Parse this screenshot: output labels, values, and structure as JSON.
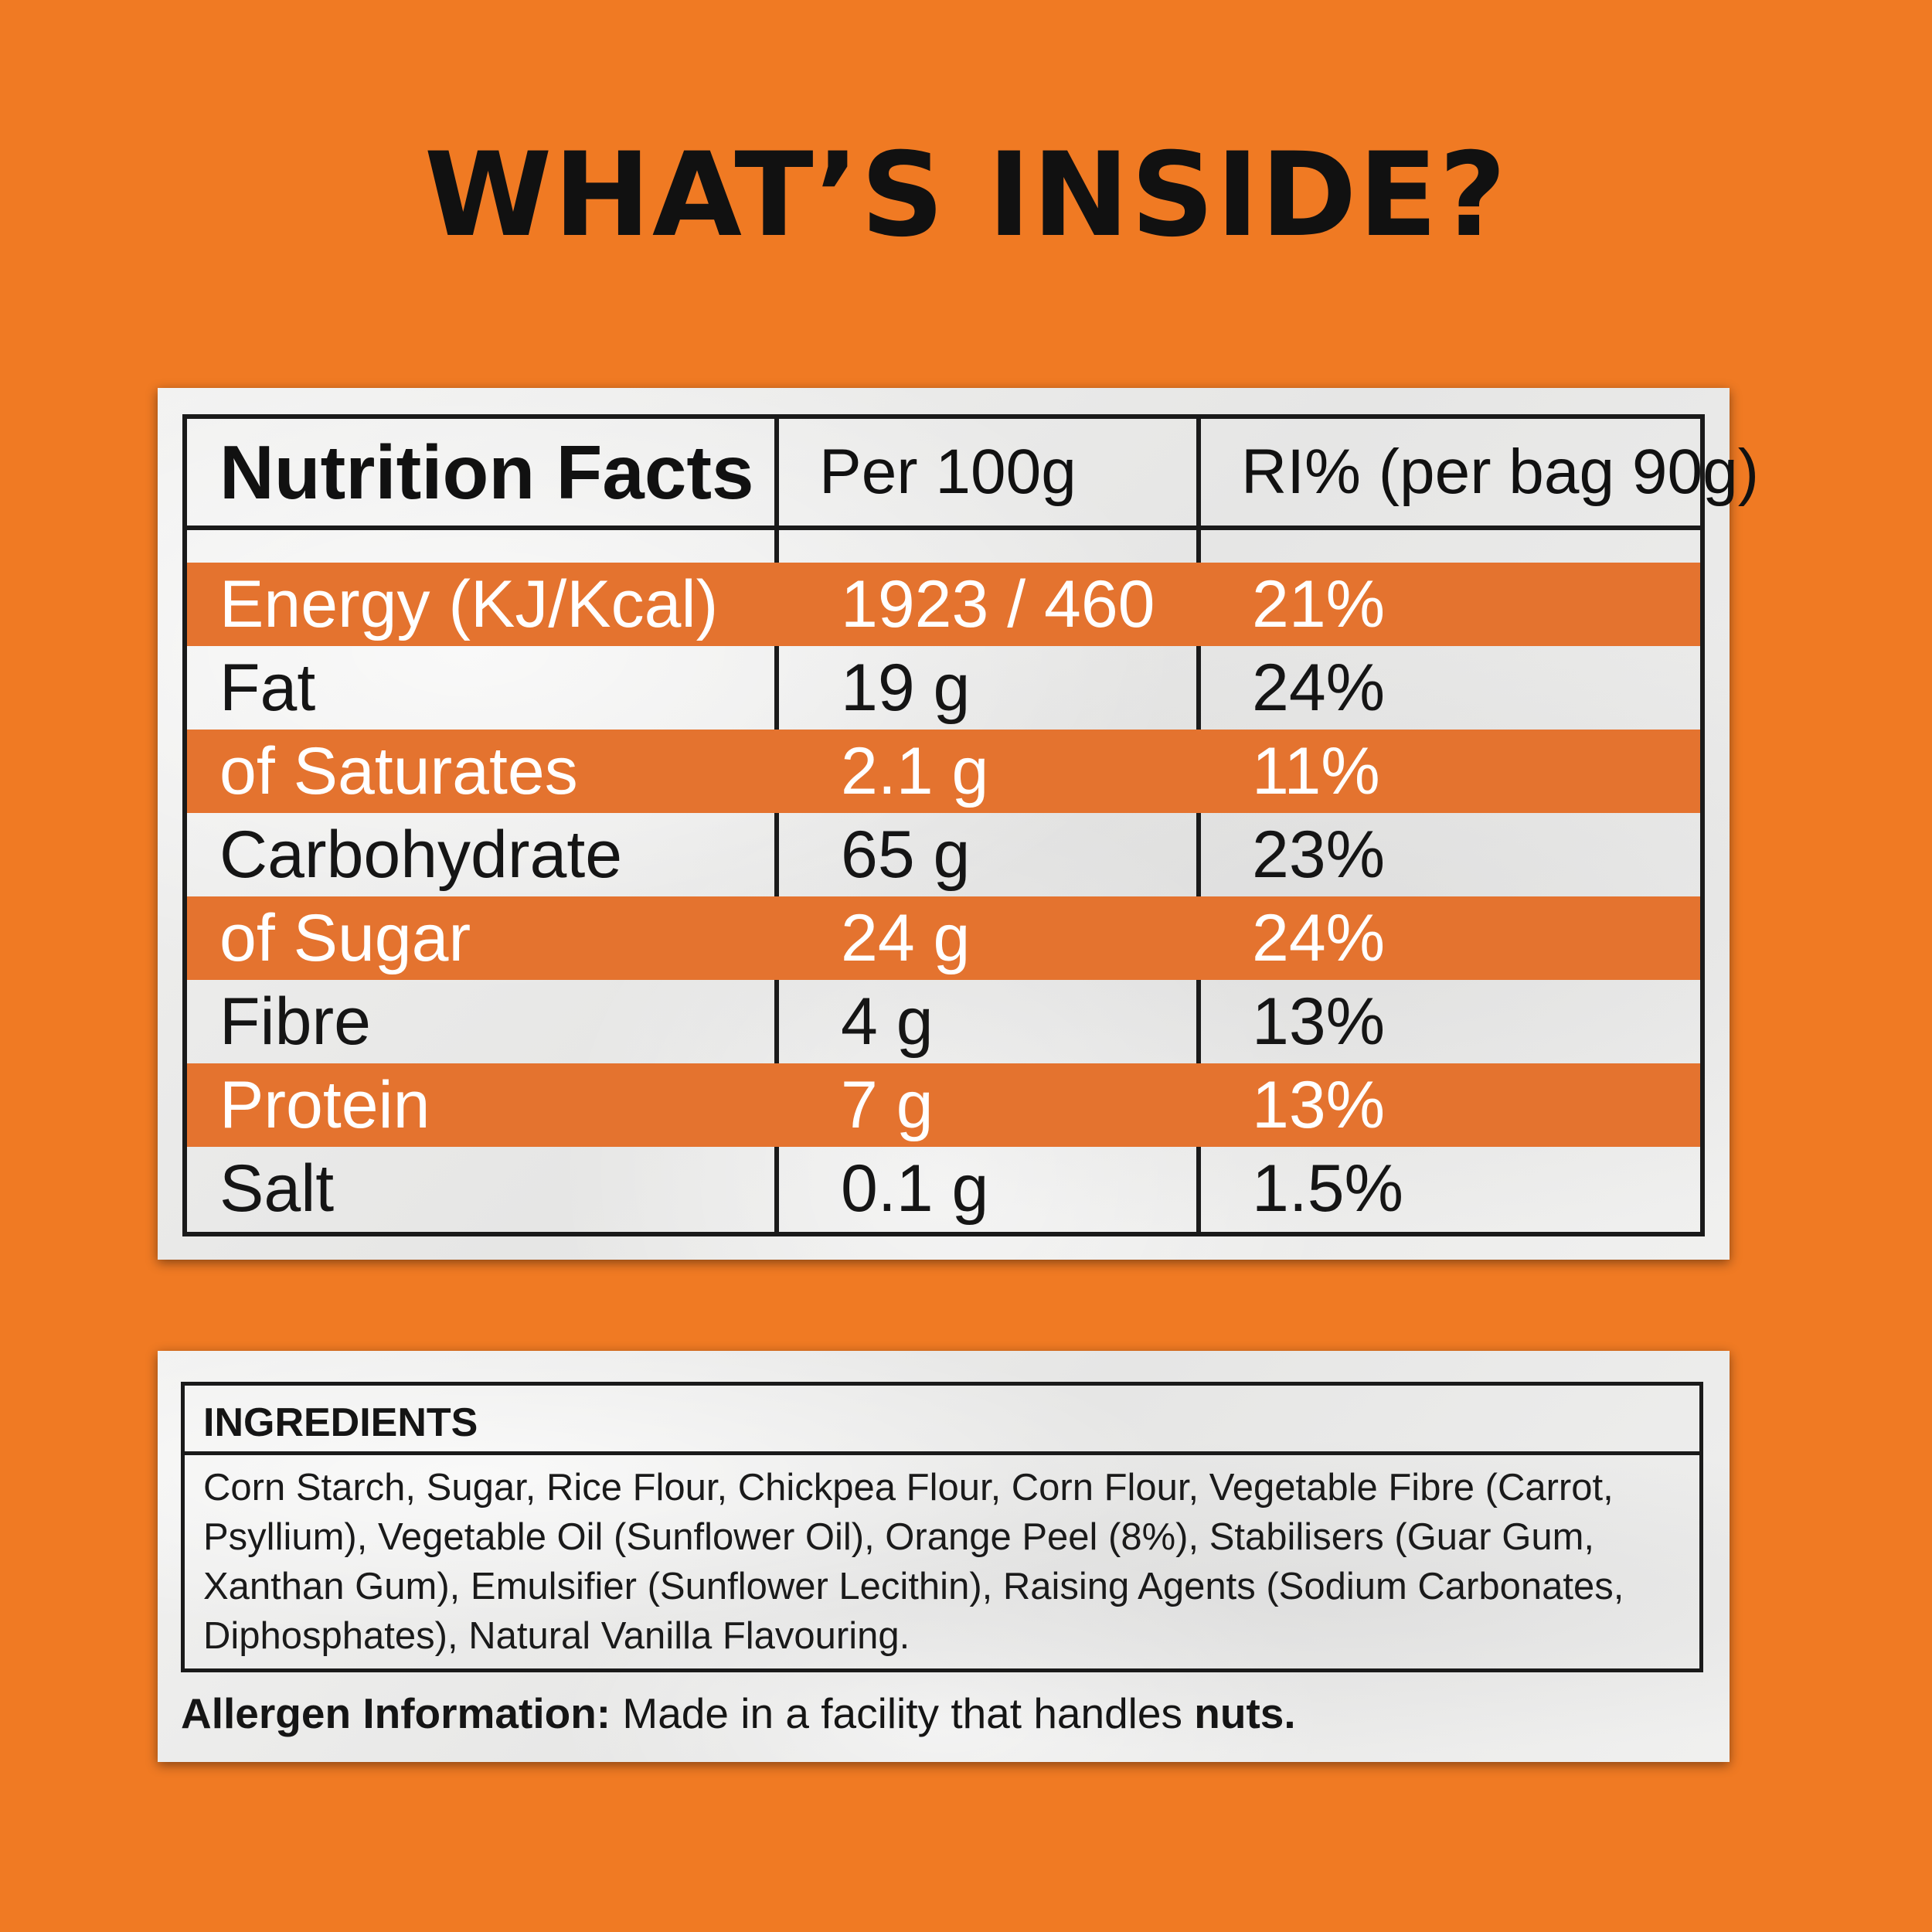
{
  "title": "WHAT’S INSIDE?",
  "nutrition": {
    "header": {
      "label": "Nutrition Facts",
      "per100": "Per 100g",
      "ri": "RI% (per bag 90g)"
    },
    "rows": [
      {
        "name": "Energy (KJ/Kcal)",
        "per100": "1923 / 460",
        "ri": "21%",
        "highlight": true
      },
      {
        "name": "Fat",
        "per100": "19 g",
        "ri": "24%",
        "highlight": false
      },
      {
        "name": "of Saturates",
        "per100": "2.1 g",
        "ri": "11%",
        "highlight": true
      },
      {
        "name": "Carbohydrate",
        "per100": "65 g",
        "ri": "23%",
        "highlight": false
      },
      {
        "name": "of Sugar",
        "per100": "24 g",
        "ri": "24%",
        "highlight": true
      },
      {
        "name": "Fibre",
        "per100": "4 g",
        "ri": "13%",
        "highlight": false
      },
      {
        "name": "Protein",
        "per100": "7 g",
        "ri": "13%",
        "highlight": true
      },
      {
        "name": "Salt",
        "per100": "0.1 g",
        "ri": "1.5%",
        "highlight": false
      }
    ]
  },
  "ingredients": {
    "title": "INGREDIENTS",
    "text": "Corn Starch, Sugar, Rice Flour, Chickpea Flour, Corn Flour, Vegetable Fibre (Carrot, Psyllium), Vegetable Oil (Sunflower Oil), Orange Peel (8%), Stabilisers (Guar Gum, Xanthan Gum), Emulsifier (Sunflower Lecithin), Raising Agents (Sodium Carbonates, Diphosphates), Natural Vanilla Flavouring."
  },
  "allergen": {
    "label": "Allergen Information:",
    "text": " Made in a facility that handles ",
    "emphasis": "nuts."
  },
  "colors": {
    "background": "#f07a23",
    "band": "#e4732f",
    "panel": "#efefee",
    "ink": "#151515"
  }
}
